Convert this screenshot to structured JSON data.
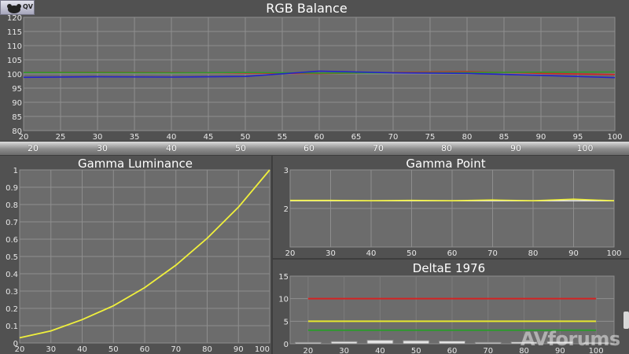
{
  "logo": {
    "text": "QV"
  },
  "watermark": "AVforums",
  "calibration_bar": {
    "labels": [
      "20",
      "30",
      "40",
      "50",
      "60",
      "70",
      "80",
      "90",
      "100"
    ]
  },
  "chart_data": [
    {
      "type": "line",
      "title": "RGB Balance",
      "x": [
        20,
        30,
        40,
        50,
        60,
        70,
        80,
        90,
        100
      ],
      "xticks": [
        20,
        25,
        30,
        35,
        40,
        45,
        50,
        55,
        60,
        65,
        70,
        75,
        80,
        85,
        90,
        95,
        100
      ],
      "xlim": [
        20,
        100
      ],
      "ylim": [
        80,
        120
      ],
      "yticks": [
        80,
        85,
        90,
        95,
        100,
        105,
        110,
        115,
        120
      ],
      "grid": true,
      "series": [
        {
          "color": "#d12525",
          "values": [
            100.5,
            100.6,
            100.5,
            100.3,
            100.1,
            100.5,
            100.8,
            100.2,
            99.8
          ]
        },
        {
          "color": "#2e9a2e",
          "values": [
            100.5,
            100.5,
            100.4,
            100.5,
            100.3,
            100.4,
            100.5,
            100.6,
            100.7
          ]
        },
        {
          "color": "#2424c8",
          "values": [
            98.8,
            99.0,
            98.9,
            99.1,
            101.0,
            100.4,
            100.2,
            99.5,
            98.7
          ]
        }
      ]
    },
    {
      "type": "line",
      "title": "Gamma Luminance",
      "x": [
        20,
        30,
        40,
        50,
        60,
        70,
        80,
        90,
        100
      ],
      "xticks": [
        20,
        30,
        40,
        50,
        60,
        70,
        80,
        90,
        100
      ],
      "xlim": [
        20,
        100
      ],
      "ylim": [
        0,
        1
      ],
      "yticks": [
        0,
        0.1,
        0.2,
        0.3,
        0.4,
        0.5,
        0.6,
        0.7,
        0.8,
        0.9,
        1
      ],
      "grid": true,
      "series": [
        {
          "color": "#f0f03c",
          "values": [
            0.03,
            0.07,
            0.135,
            0.215,
            0.32,
            0.45,
            0.605,
            0.785,
            1.0
          ]
        }
      ]
    },
    {
      "type": "line",
      "title": "Gamma Point",
      "x": [
        20,
        30,
        40,
        50,
        60,
        70,
        80,
        90,
        100
      ],
      "xticks": [
        20,
        30,
        40,
        50,
        60,
        70,
        80,
        90,
        100
      ],
      "xlim": [
        20,
        100
      ],
      "ylim": [
        1,
        3
      ],
      "yticks": [
        1,
        2,
        3
      ],
      "yticklabels": [
        "",
        "2",
        "3"
      ],
      "grid": true,
      "series": [
        {
          "color": "#e8e8e8",
          "values": [
            2.2,
            2.2,
            2.2,
            2.2,
            2.2,
            2.2,
            2.2,
            2.2,
            2.2
          ]
        },
        {
          "color": "#f0f03c",
          "values": [
            2.21,
            2.21,
            2.2,
            2.21,
            2.2,
            2.22,
            2.2,
            2.24,
            2.2
          ]
        }
      ]
    },
    {
      "type": "bar",
      "title": "DeltaE 1976",
      "categories": [
        "20",
        "30",
        "40",
        "50",
        "60",
        "70",
        "80",
        "90",
        "100"
      ],
      "values": [
        0.3,
        0.5,
        0.8,
        0.7,
        0.6,
        0.3,
        0.4,
        0.5,
        0.3
      ],
      "ylim": [
        0,
        15
      ],
      "yticks": [
        0,
        5,
        10,
        15
      ],
      "grid": true,
      "reference_lines": [
        {
          "value": 10,
          "color": "#d42323"
        },
        {
          "value": 5,
          "color": "#e6e62e"
        },
        {
          "value": 3,
          "color": "#2c9a2c"
        }
      ]
    }
  ]
}
